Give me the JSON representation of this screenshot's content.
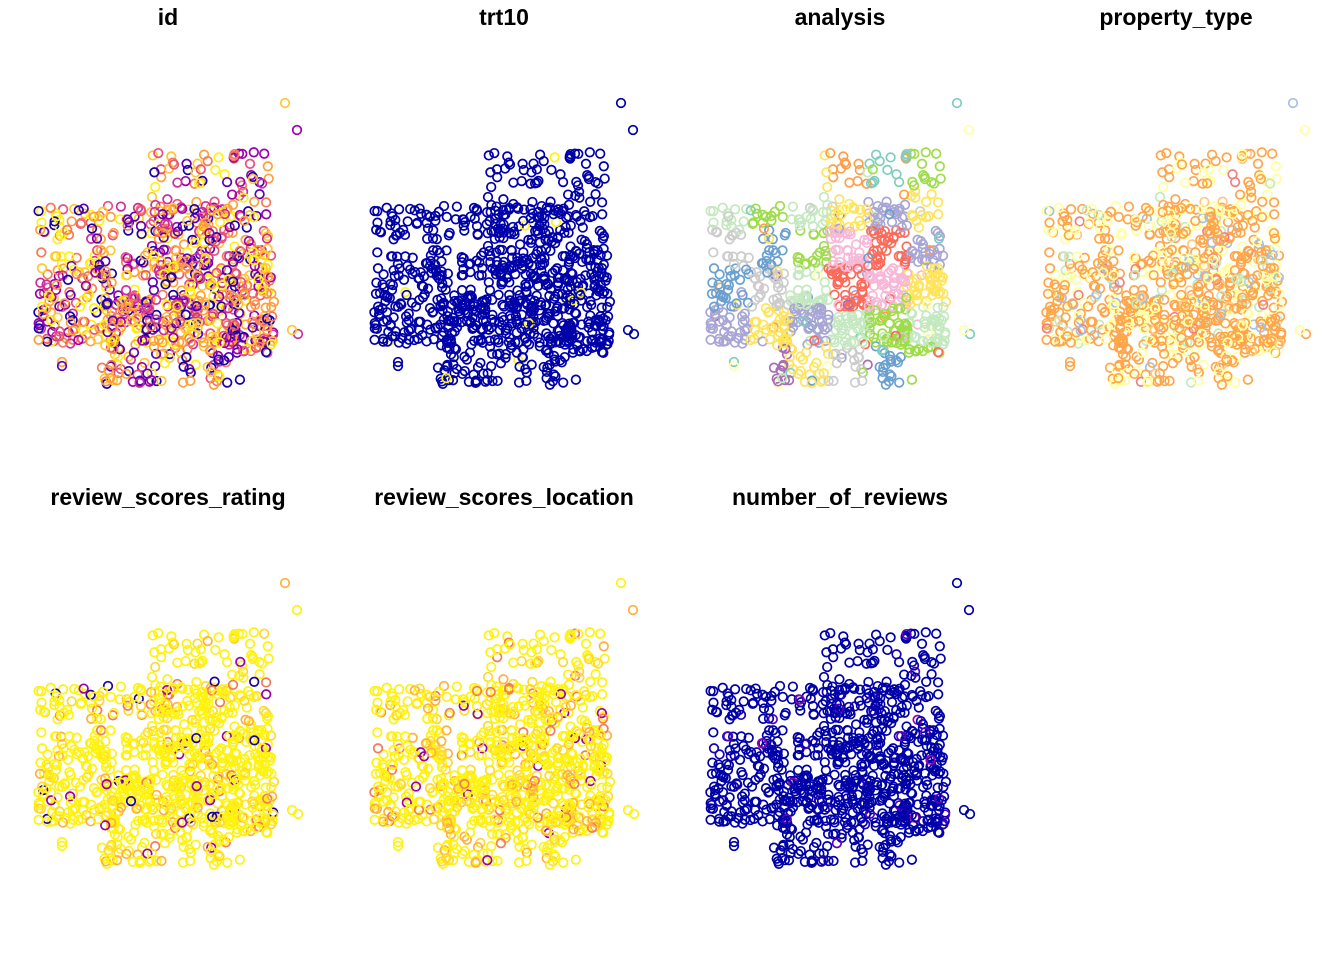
{
  "chart_data": {
    "type": "scatter",
    "description_style": "small multiples of point maps, open circle markers",
    "grid": false,
    "legend": "none",
    "panels": [
      {
        "title": "id",
        "palette": [
          "#1a00a8",
          "#5b00b8",
          "#9b00b0",
          "#cc2ea0",
          "#e8507e",
          "#f57a5a",
          "#ff9f3a",
          "#ffc830",
          "#fff20e"
        ],
        "weights": [
          0.09,
          0.08,
          0.1,
          0.1,
          0.1,
          0.12,
          0.14,
          0.14,
          0.13
        ]
      },
      {
        "title": "trt10",
        "palette": [
          "#0000a8",
          "#fff20e"
        ],
        "weights": [
          0.985,
          0.015
        ]
      },
      {
        "title": "analysis",
        "palette": [
          "#fb6a5a",
          "#9fdc4a",
          "#cccccc",
          "#ff9f4a",
          "#a8a6d4",
          "#f7b8d8",
          "#a86db4",
          "#c4e8c0",
          "#7ecec0",
          "#6aa0d0",
          "#ffe45a",
          "#feffa8"
        ],
        "weights": [
          0.08,
          0.07,
          0.09,
          0.09,
          0.1,
          0.06,
          0.12,
          0.09,
          0.09,
          0.08,
          0.06,
          0.07
        ],
        "regional": true
      },
      {
        "title": "property_type",
        "palette": [
          "#ffa64a",
          "#ffffa0",
          "#c4e8c0",
          "#a8c0e0",
          "#f08080",
          "#ffc880"
        ],
        "weights": [
          0.55,
          0.28,
          0.06,
          0.04,
          0.03,
          0.04
        ]
      },
      {
        "title": "review_scores_rating",
        "palette": [
          "#fff20e",
          "#ffd830",
          "#ffb040",
          "#f57a5a",
          "#9b00b0",
          "#1a00a8"
        ],
        "weights": [
          0.78,
          0.1,
          0.06,
          0.03,
          0.015,
          0.015
        ]
      },
      {
        "title": "review_scores_location",
        "palette": [
          "#fff20e",
          "#ffd830",
          "#ffb040",
          "#f57a5a",
          "#9b00b0"
        ],
        "weights": [
          0.72,
          0.12,
          0.1,
          0.04,
          0.02
        ]
      },
      {
        "title": "number_of_reviews",
        "palette": [
          "#0000a8",
          "#1a00b8",
          "#5b00c0",
          "#9b00b0"
        ],
        "weights": [
          0.93,
          0.04,
          0.02,
          0.01
        ]
      }
    ]
  }
}
